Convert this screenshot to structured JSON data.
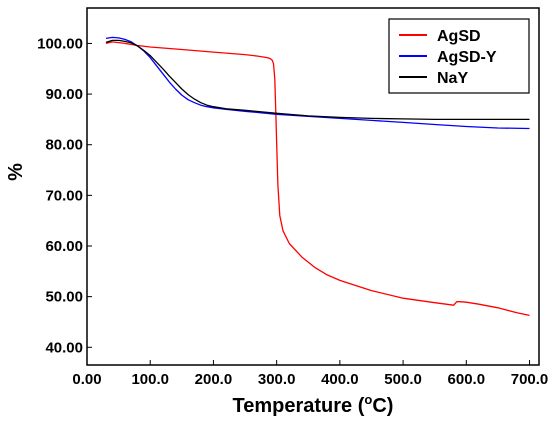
{
  "chart_data": {
    "type": "line",
    "xlabel": "Temperature (",
    "xlabel_sup": "o",
    "xlabel_tail": "C)",
    "ylabel": "%",
    "xlim": [
      0,
      715
    ],
    "ylim": [
      36.5,
      107
    ],
    "xticks": [
      0,
      100,
      200,
      300,
      400,
      500,
      600,
      700
    ],
    "xtick_labels": [
      "0.00",
      "100.0",
      "200.0",
      "300.0",
      "400.0",
      "500.0",
      "600.0",
      "700.0"
    ],
    "yticks": [
      40,
      50,
      60,
      70,
      80,
      90,
      100
    ],
    "ytick_labels": [
      "40.00",
      "50.00",
      "60.00",
      "70.00",
      "80.00",
      "90.00",
      "100.00"
    ],
    "grid": false,
    "legend_position": "top-right",
    "series": [
      {
        "name": "AgSD",
        "color": "#ff0000",
        "x": [
          30,
          40,
          60,
          80,
          100,
          150,
          200,
          250,
          270,
          280,
          285,
          290,
          293,
          295,
          297,
          299,
          300,
          302,
          305,
          310,
          320,
          340,
          360,
          380,
          400,
          450,
          500,
          550,
          580,
          585,
          590,
          600,
          620,
          650,
          680,
          700
        ],
        "y": [
          100.0,
          100.3,
          100.0,
          99.6,
          99.3,
          98.8,
          98.3,
          97.8,
          97.5,
          97.3,
          97.2,
          97.0,
          96.7,
          96.0,
          93.0,
          85.0,
          80.0,
          72.0,
          66.0,
          63.0,
          60.5,
          57.8,
          55.8,
          54.3,
          53.2,
          51.2,
          49.7,
          48.8,
          48.3,
          49.0,
          49.0,
          48.9,
          48.5,
          47.8,
          46.8,
          46.3
        ]
      },
      {
        "name": "AgSD-Y",
        "color": "#0000ff",
        "x": [
          30,
          40,
          50,
          60,
          70,
          80,
          90,
          100,
          110,
          120,
          130,
          140,
          150,
          160,
          170,
          180,
          190,
          200,
          220,
          250,
          300,
          350,
          400,
          450,
          500,
          550,
          600,
          650,
          700
        ],
        "y": [
          101.0,
          101.2,
          101.1,
          100.8,
          100.3,
          99.5,
          98.5,
          97.2,
          95.6,
          94.0,
          92.4,
          91.0,
          89.8,
          88.9,
          88.3,
          87.8,
          87.5,
          87.3,
          87.0,
          86.6,
          86.0,
          85.6,
          85.2,
          84.8,
          84.4,
          84.0,
          83.6,
          83.3,
          83.2
        ]
      },
      {
        "name": "NaY",
        "color": "#000000",
        "x": [
          30,
          40,
          50,
          60,
          70,
          80,
          90,
          100,
          110,
          120,
          130,
          140,
          150,
          160,
          170,
          180,
          190,
          200,
          220,
          250,
          300,
          350,
          400,
          450,
          500,
          550,
          600,
          650,
          700
        ],
        "y": [
          100.2,
          100.6,
          100.6,
          100.4,
          100.1,
          99.5,
          98.6,
          97.6,
          96.3,
          95.0,
          93.6,
          92.3,
          91.0,
          89.9,
          89.0,
          88.3,
          87.8,
          87.5,
          87.1,
          86.8,
          86.2,
          85.7,
          85.4,
          85.2,
          85.1,
          85.0,
          85.0,
          85.0,
          85.0
        ]
      }
    ]
  }
}
